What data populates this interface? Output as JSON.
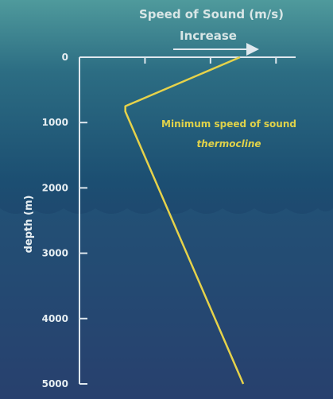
{
  "colors": {
    "background_top": "#4f9a9c",
    "background_mid": "#1c4f72",
    "background_bottom": "#2a2760",
    "wave": "#26557a",
    "axis": "#dfe8ee",
    "curve": "#e6d24a",
    "annotation": "#e0d24a"
  },
  "chart_data": {
    "type": "line",
    "title": "Speed of Sound (m/s)",
    "subtitle": "Increase",
    "ylabel": "depth (m)",
    "y_ticks": [
      0,
      1000,
      2000,
      3000,
      4000,
      5000
    ],
    "y_tick_labels": [
      "0",
      "1000",
      "2000",
      "3000",
      "4000",
      "5000"
    ],
    "ylim": [
      0,
      5000
    ],
    "y_inverted": true,
    "x_ticks": [
      1,
      2,
      3
    ],
    "xlim": [
      0,
      3.3
    ],
    "x_tick_labels_shown": false,
    "grid": false,
    "series": [
      {
        "points": [
          {
            "speed_rel": 2.45,
            "depth": 0
          },
          {
            "speed_rel": 0.7,
            "depth": 750
          },
          {
            "speed_rel": 0.7,
            "depth": 830
          },
          {
            "speed_rel": 2.5,
            "depth": 5000
          }
        ]
      }
    ],
    "annotations": [
      {
        "text": "Minimum speed of sound",
        "style": "normal"
      },
      {
        "text": "thermocline",
        "style": "italic"
      }
    ]
  }
}
